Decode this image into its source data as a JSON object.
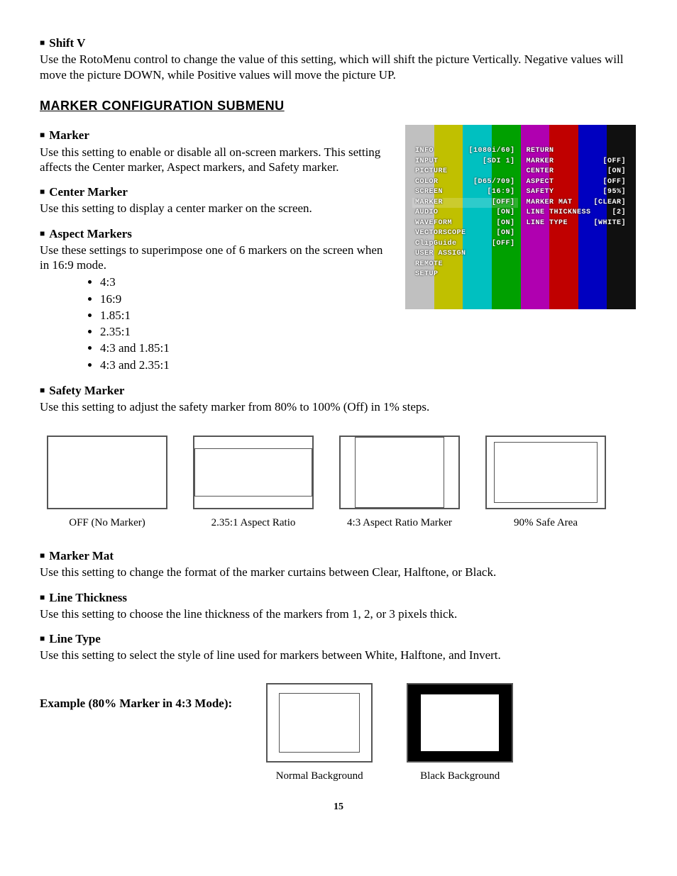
{
  "shiftV": {
    "title": "Shift V",
    "body": "Use the RotoMenu control to change the value of this setting, which will shift the picture Vertically. Negative values will move the picture DOWN, while Positive values will move the picture UP."
  },
  "sectionTitle": "MARKER CONFIGURATION SUBMENU",
  "marker": {
    "title": "Marker",
    "body": "Use this setting to enable or disable all on-screen markers. This setting affects the Center marker, Aspect markers, and Safety marker."
  },
  "center": {
    "title": "Center Marker",
    "body": "Use this setting to display a center marker on the screen."
  },
  "aspect": {
    "title": "Aspect Markers",
    "body": "Use these settings to superimpose one of 6 markers on the screen when in 16:9 mode.",
    "items": [
      "4:3",
      "16:9",
      "1.85:1",
      "2.35:1",
      "4:3 and 1.85:1",
      "4:3 and 2.35:1"
    ]
  },
  "safety": {
    "title": "Safety Marker",
    "body": "Use this setting to adjust the safety marker from 80% to 100% (Off) in 1% steps."
  },
  "examples": [
    {
      "caption": "OFF (No Marker)"
    },
    {
      "caption": "2.35:1 Aspect Ratio"
    },
    {
      "caption": "4:3 Aspect Ratio Marker"
    },
    {
      "caption": "90% Safe Area"
    }
  ],
  "markerMat": {
    "title": "Marker Mat",
    "body": "Use this setting to change the format of the marker curtains between Clear, Halftone, or Black."
  },
  "lineThick": {
    "title": "Line Thickness",
    "body": "Use this setting to choose the line thickness of the markers from 1, 2, or 3 pixels thick."
  },
  "lineType": {
    "title": "Line Type",
    "body": "Use this setting to select the style of line used for markers between White, Halftone, and Invert."
  },
  "mode80": {
    "label": "Example (80% Marker in 4:3 Mode):",
    "cap1": "Normal Background",
    "cap2": "Black Background"
  },
  "osd": {
    "left": [
      {
        "k": "INFO",
        "v": "[1080i/60]"
      },
      {
        "k": "INPUT",
        "v": "[SDI 1]"
      },
      {
        "k": "PICTURE",
        "v": ""
      },
      {
        "k": "COLOR",
        "v": "[D65/709]"
      },
      {
        "k": "SCREEN",
        "v": "[16:9]"
      },
      {
        "k": "MARKER",
        "v": "[OFF]",
        "hl": true
      },
      {
        "k": "AUDIO",
        "v": "[ON]"
      },
      {
        "k": "WAVEFORM",
        "v": "[ON]"
      },
      {
        "k": "VECTORSCOPE",
        "v": "[ON]"
      },
      {
        "k": "ClipGuide",
        "v": "[OFF]"
      },
      {
        "k": "USER ASSIGN",
        "v": ""
      },
      {
        "k": "REMOTE",
        "v": ""
      },
      {
        "k": "SETUP",
        "v": ""
      }
    ],
    "right": [
      {
        "k": "RETURN",
        "v": ""
      },
      {
        "k": "MARKER",
        "v": "[OFF]"
      },
      {
        "k": "CENTER",
        "v": "[ON]"
      },
      {
        "k": "ASPECT",
        "v": "[OFF]"
      },
      {
        "k": "SAFETY",
        "v": "[95%]"
      },
      {
        "k": "MARKER MAT",
        "v": "[CLEAR]"
      },
      {
        "k": "LINE THICKNESS",
        "v": "[2]"
      },
      {
        "k": "LINE TYPE",
        "v": "[WHITE]"
      }
    ]
  },
  "colorbars": [
    "#c0c0c0",
    "#c0c000",
    "#00c0c0",
    "#00a000",
    "#b000b0",
    "#c00000",
    "#0000c0",
    "#101010"
  ],
  "pageNum": "15"
}
